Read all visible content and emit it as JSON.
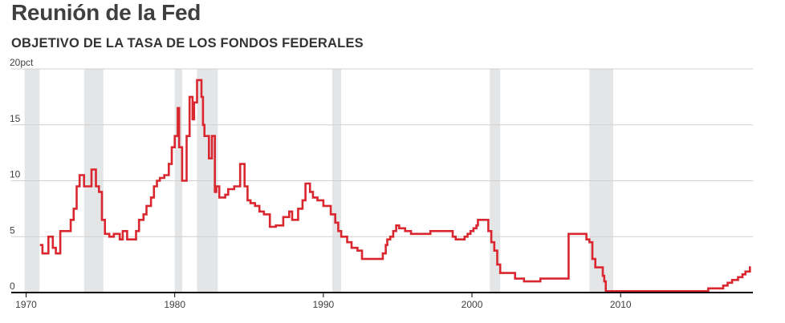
{
  "header": {
    "title": "Reunión de la Fed",
    "subtitle": "OBJETIVO DE LA TASA DE LOS FONDOS FEDERALES"
  },
  "chart_data": {
    "type": "line",
    "title": "Reunión de la Fed",
    "subtitle": "OBJETIVO DE LA TASA DE LOS FONDOS FEDERALES",
    "xlabel": "",
    "ylabel": "",
    "xlim": [
      1969.0,
      2018.9
    ],
    "ylim": [
      0,
      20
    ],
    "y_ticks": [
      0,
      5,
      10,
      15,
      20
    ],
    "y_tick_labels": [
      "0",
      "5",
      "10",
      "15",
      "20pct"
    ],
    "x_ticks": [
      1970,
      1980,
      1990,
      2000,
      2010
    ],
    "x_tick_labels": [
      "1970",
      "1980",
      "1990",
      "2000",
      "2010"
    ],
    "grid": "horizontal",
    "colors": {
      "line": "#d9262f",
      "recession": "#e4e5e7",
      "grid": "#d0d0d0",
      "axis": "#000000"
    },
    "recessions": [
      [
        1969.9,
        1970.9
      ],
      [
        1973.9,
        1975.2
      ],
      [
        1980.0,
        1980.5
      ],
      [
        1981.5,
        1982.9
      ],
      [
        1990.6,
        1991.2
      ],
      [
        2001.2,
        2001.9
      ],
      [
        2007.9,
        2009.5
      ]
    ],
    "series": [
      {
        "step": true,
        "x": [
          1971.0,
          1971.1,
          1971.5,
          1971.8,
          1972.0,
          1972.3,
          1973.0,
          1973.2,
          1973.4,
          1973.6,
          1973.9,
          1974.4,
          1974.7,
          1974.9,
          1975.1,
          1975.3,
          1975.6,
          1975.9,
          1976.3,
          1976.5,
          1976.8,
          1977.0,
          1977.4,
          1977.6,
          1977.9,
          1978.1,
          1978.4,
          1978.6,
          1978.8,
          1979.0,
          1979.3,
          1979.6,
          1979.8,
          1980.0,
          1980.2,
          1980.3,
          1980.5,
          1980.8,
          1981.0,
          1981.2,
          1981.3,
          1981.5,
          1981.8,
          1981.9,
          1982.0,
          1982.3,
          1982.5,
          1982.7,
          1982.8,
          1983.0,
          1983.4,
          1983.6,
          1984.0,
          1984.4,
          1984.7,
          1984.9,
          1985.1,
          1985.4,
          1985.7,
          1986.0,
          1986.4,
          1986.8,
          1987.3,
          1987.7,
          1987.9,
          1988.3,
          1988.6,
          1988.8,
          1989.1,
          1989.3,
          1989.6,
          1990.0,
          1990.5,
          1990.8,
          1991.0,
          1991.2,
          1991.6,
          1991.9,
          1992.3,
          1992.6,
          1993.0,
          1994.0,
          1994.2,
          1994.3,
          1994.5,
          1994.7,
          1994.9,
          1995.1,
          1995.5,
          1995.9,
          1996.1,
          1997.2,
          1998.7,
          1998.9,
          1999.5,
          1999.7,
          1999.9,
          2000.1,
          2000.3,
          2000.4,
          2001.0,
          2001.1,
          2001.3,
          2001.5,
          2001.7,
          2001.9,
          2002.9,
          2003.5,
          2004.5,
          2004.6,
          2006.5,
          2007.7,
          2007.9,
          2008.1,
          2008.3,
          2008.8,
          2008.9,
          2009.0,
          2015.9,
          2016.9,
          2017.2,
          2017.5,
          2017.9,
          2018.2,
          2018.4,
          2018.7
        ],
        "y": [
          4.25,
          3.5,
          5.0,
          4.0,
          3.5,
          5.5,
          6.5,
          7.5,
          9.5,
          10.5,
          9.5,
          11.0,
          9.5,
          9.0,
          6.5,
          5.25,
          5.0,
          5.25,
          4.75,
          5.5,
          4.75,
          4.75,
          5.5,
          6.5,
          7.0,
          7.75,
          8.5,
          9.5,
          10.0,
          10.25,
          10.5,
          11.5,
          13.0,
          14.0,
          16.5,
          13.0,
          10.0,
          14.0,
          17.5,
          15.5,
          17.0,
          19.0,
          17.5,
          15.0,
          14.0,
          12.0,
          14.0,
          9.0,
          9.5,
          8.5,
          8.75,
          9.25,
          9.5,
          11.5,
          9.5,
          8.25,
          8.0,
          7.75,
          7.25,
          7.0,
          5.875,
          6.0,
          6.75,
          7.25,
          6.5,
          7.5,
          8.25,
          9.75,
          9.0,
          8.5,
          8.25,
          7.75,
          7.0,
          6.25,
          5.5,
          5.0,
          4.5,
          4.0,
          3.75,
          3.0,
          3.0,
          3.5,
          4.25,
          4.75,
          5.0,
          5.5,
          6.0,
          5.75,
          5.5,
          5.25,
          5.25,
          5.5,
          5.0,
          4.75,
          5.0,
          5.25,
          5.5,
          5.75,
          6.0,
          6.5,
          6.5,
          5.5,
          4.5,
          3.75,
          2.5,
          1.75,
          1.25,
          1.0,
          1.0,
          1.25,
          5.25,
          4.75,
          4.5,
          3.0,
          2.25,
          1.5,
          1.0,
          0.125,
          0.375,
          0.625,
          0.875,
          1.125,
          1.375,
          1.625,
          1.875,
          2.25
        ]
      }
    ]
  }
}
